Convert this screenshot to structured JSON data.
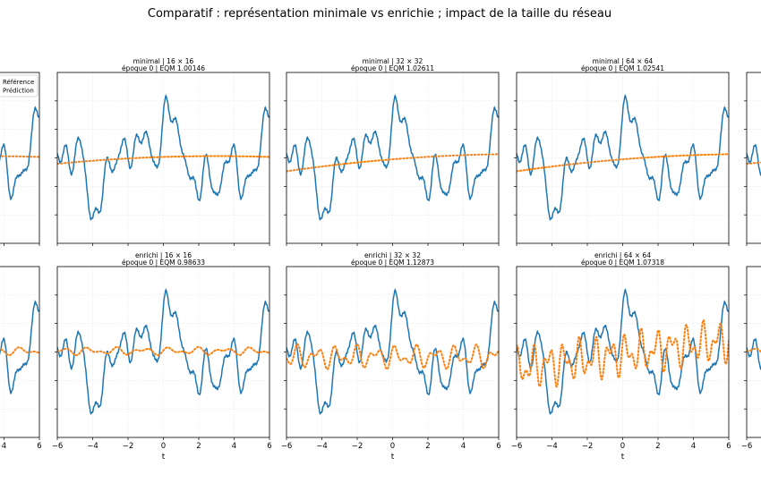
{
  "figure": {
    "title": "Comparatif : représentation minimale vs enrichie ; impact de la taille du réseau"
  },
  "legend": {
    "placement": "upper-left (first subplot)",
    "entries": [
      {
        "label": "Référence",
        "color": "#1f77b4",
        "style": "solid"
      },
      {
        "label": "Prédiction",
        "color": "#ff7f0e",
        "style": "dotted"
      }
    ]
  },
  "chart_data": [
    {
      "type": "line",
      "row": "minimal",
      "col": 1,
      "title": "minimal | 16 × 16",
      "subtitle": "époque 0 | EQM 1.00146",
      "xlabel": "",
      "xlim": [
        -6,
        6
      ],
      "xticks": [
        "−6",
        "−4",
        "−2",
        "0",
        "2",
        "4",
        "6"
      ],
      "grid": true
    },
    {
      "type": "line",
      "row": "minimal",
      "col": 2,
      "title": "minimal | 32 × 32",
      "subtitle": "époque 0 | EQM 1.02611",
      "xlabel": "",
      "xlim": [
        -6,
        6
      ],
      "xticks": [
        "−6",
        "−4",
        "−2",
        "0",
        "2",
        "4",
        "6"
      ],
      "grid": true
    },
    {
      "type": "line",
      "row": "minimal",
      "col": 3,
      "title": "minimal | 64 × 64",
      "subtitle": "époque 0 | EQM 1.02541",
      "xlabel": "",
      "xlim": [
        -6,
        6
      ],
      "xticks": [
        "−6",
        "−4",
        "−2",
        "0",
        "2",
        "4",
        "6"
      ],
      "grid": true
    },
    {
      "type": "line",
      "row": "enrichi",
      "col": 1,
      "title": "enrichi | 16 × 16",
      "subtitle": "époque 0 | EQM 0.98633",
      "xlabel": "t",
      "xlim": [
        -6,
        6
      ],
      "xticks": [
        "−6",
        "−4",
        "−2",
        "0",
        "2",
        "4",
        "6"
      ],
      "grid": true
    },
    {
      "type": "line",
      "row": "enrichi",
      "col": 2,
      "title": "enrichi | 32 × 32",
      "subtitle": "époque 0 | EQM 1.12873",
      "xlabel": "t",
      "xlim": [
        -6,
        6
      ],
      "xticks": [
        "−6",
        "−4",
        "−2",
        "0",
        "2",
        "4",
        "6"
      ],
      "grid": true
    },
    {
      "type": "line",
      "row": "enrichi",
      "col": 3,
      "title": "enrichi | 64 × 64",
      "subtitle": "époque 0 | EQM 1.07318",
      "xlabel": "t",
      "xlim": [
        -6,
        6
      ],
      "xticks": [
        "−6",
        "−4",
        "−2",
        "0",
        "2",
        "4",
        "6"
      ],
      "grid": true
    }
  ],
  "partial_left": {
    "xticks": [
      "4",
      "6"
    ]
  },
  "partial_right": {
    "xticks": [
      "−6"
    ]
  },
  "colors": {
    "reference": "#1f77b4",
    "prediction": "#ff7f0e",
    "grid": "#e6e6e6"
  }
}
